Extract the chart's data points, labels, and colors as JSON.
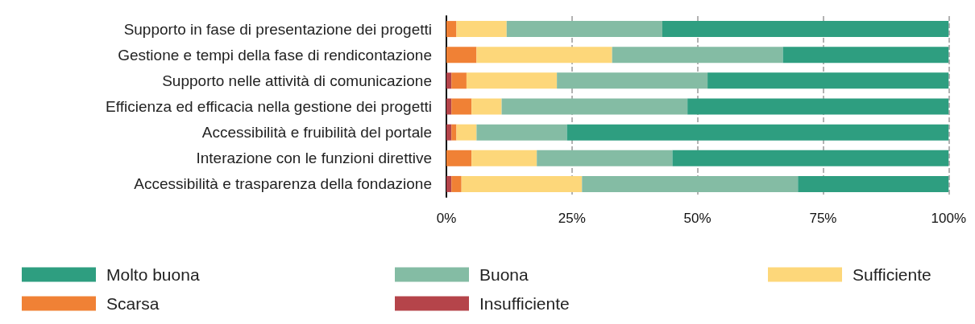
{
  "chart_data": {
    "type": "bar",
    "orientation": "horizontal",
    "stacked": true,
    "categories": [
      "Supporto in fase di presentazione dei progetti",
      "Gestione e tempi della fase di rendicontazione",
      "Supporto nelle attività di comunicazione",
      "Efficienza ed efficacia nella gestione dei progetti",
      "Accessibilità e fruibilità del portale",
      "Interazione con le funzioni direttive",
      "Accessibilità e trasparenza della fondazione"
    ],
    "series": [
      {
        "name": "Insufficiente",
        "color": "#b5444a",
        "values": [
          0,
          0,
          1,
          1,
          1,
          0,
          1
        ]
      },
      {
        "name": "Scarsa",
        "color": "#f08135",
        "values": [
          2,
          6,
          3,
          4,
          1,
          5,
          2
        ]
      },
      {
        "name": "Sufficiente",
        "color": "#fdd77a",
        "values": [
          10,
          27,
          18,
          6,
          4,
          13,
          24
        ]
      },
      {
        "name": "Buona",
        "color": "#84bca4",
        "values": [
          31,
          34,
          30,
          37,
          18,
          27,
          43
        ]
      },
      {
        "name": "Molto buona",
        "color": "#2e9e80",
        "values": [
          57,
          33,
          48,
          52,
          76,
          55,
          30
        ]
      }
    ],
    "xlim": [
      0,
      100
    ],
    "xticks": [
      {
        "value": 0,
        "label": "0%"
      },
      {
        "value": 25,
        "label": "25%"
      },
      {
        "value": 50,
        "label": "50%"
      },
      {
        "value": 75,
        "label": "75%"
      },
      {
        "value": 100,
        "label": "100%"
      }
    ],
    "grid": "x",
    "legend": "bottom"
  }
}
